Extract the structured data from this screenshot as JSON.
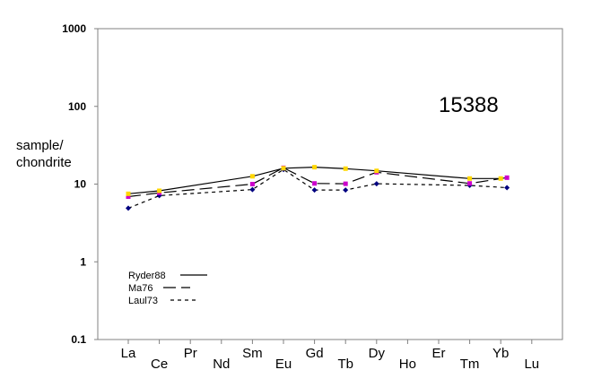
{
  "chart_data": {
    "type": "line",
    "ylabel_lines": [
      "sample/",
      "chondrite"
    ],
    "annotation": "15388",
    "yscale": "log",
    "ylim": [
      0.1,
      1000
    ],
    "yticks": [
      0.1,
      1,
      10,
      100,
      1000
    ],
    "ytick_labels": [
      "0.1",
      "1",
      "10",
      "100",
      "1000"
    ],
    "categories": [
      "La",
      "Ce",
      "Pr",
      "Nd",
      "Sm",
      "Eu",
      "Gd",
      "Tb",
      "Dy",
      "Ho",
      "Er",
      "Tm",
      "Yb",
      "Lu"
    ],
    "grid": false,
    "legend_position": "bottom-left",
    "series": [
      {
        "name": "Ryder88",
        "style": "solid",
        "marker_color": "#ffd700",
        "x": [
          0,
          1,
          4,
          5,
          6,
          7,
          8,
          11,
          12
        ],
        "y": [
          7.5,
          8.2,
          12.6,
          16,
          16.5,
          15.8,
          14.8,
          11.8,
          11.8
        ]
      },
      {
        "name": "Ma76",
        "style": "dashed",
        "marker_color": "#cc00cc",
        "x": [
          0,
          1,
          4,
          5,
          6,
          7,
          8,
          11,
          12.2
        ],
        "y": [
          6.9,
          7.7,
          10.0,
          16.2,
          10.2,
          10.1,
          14.2,
          10.2,
          12.1
        ]
      },
      {
        "name": "Laul73",
        "style": "dotted",
        "marker_color": "#000080",
        "x": [
          0,
          1,
          4,
          5,
          6,
          7,
          8,
          11,
          12.2
        ],
        "y": [
          4.9,
          7.1,
          8.5,
          15.4,
          8.4,
          8.4,
          10.1,
          9.6,
          9.0
        ]
      }
    ]
  }
}
